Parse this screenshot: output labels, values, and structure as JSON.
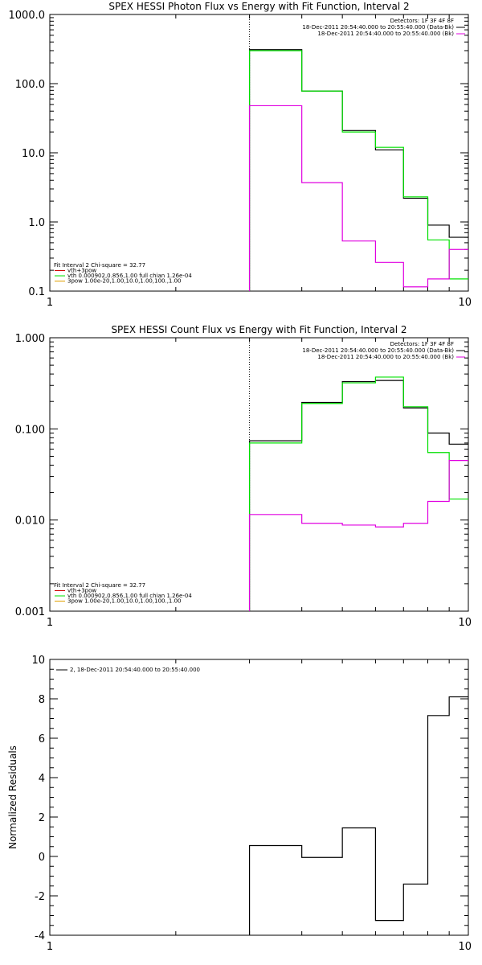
{
  "chart_data": [
    {
      "type": "line",
      "title": "SPEX HESSI Photon Flux vs Energy with Fit Function, Interval 2",
      "ylabel": "",
      "xlabel": "",
      "xscale": "log",
      "yscale": "log",
      "xlim": [
        1,
        10
      ],
      "ylim": [
        0.1,
        1000
      ],
      "x_ticks": [
        "1",
        "10"
      ],
      "y_ticks": [
        "0.1",
        "1.0",
        "10.0",
        "100.0",
        "1000.0"
      ],
      "vline_x": 3,
      "legend_top_right": [
        "Detectors: 1F 3F 4F 8F",
        "18-Dec-2011 20:54:40.000 to 20:55:40.000 (Data-Bk)",
        "18-Dec-2011 20:54:40.000 to 20:55:40.000 (Bk)"
      ],
      "legend_bottom_left": [
        "Fit Interval 2   Chi-square = 32.77",
        "vth+3pow",
        "vth 0.000902,0.856,1.00  full chian 1.26e-04",
        "3pow 1.00e-20,1.00,10.0,1.00,100.,1.00"
      ],
      "legend_colors": [
        "#d00000",
        "#00e000",
        "#e0a000"
      ],
      "edges": [
        3,
        4,
        5,
        6,
        7,
        8,
        9,
        10
      ],
      "series": [
        {
          "name": "",
          "color": "#000000",
          "values": [
            310,
            78,
            21,
            11,
            2.2,
            0.9,
            0.6
          ]
        },
        {
          "name": "",
          "color": "#00e000",
          "values": [
            300,
            78,
            20,
            12,
            2.3,
            0.55,
            0.15
          ]
        },
        {
          "name": "",
          "color": "#e000e0",
          "values": [
            48,
            3.7,
            0.53,
            0.26,
            0.115,
            0.15,
            0.4
          ]
        }
      ]
    },
    {
      "type": "line",
      "title": "SPEX HESSI Count Flux vs Energy with Fit Function, Interval 2",
      "ylabel": "",
      "xlabel": "",
      "xscale": "log",
      "yscale": "log",
      "xlim": [
        1,
        10
      ],
      "ylim": [
        0.001,
        1
      ],
      "x_ticks": [
        "1",
        "10"
      ],
      "y_ticks": [
        "0.001",
        "0.010",
        "0.100",
        "1.000"
      ],
      "vline_x": 3,
      "legend_top_right": [
        "Detectors: 1F 3F 4F 8F",
        "18-Dec-2011 20:54:40.000 to 20:55:40.000 (Data-Bk)",
        "18-Dec-2011 20:54:40.000 to 20:55:40.000 (Bk)"
      ],
      "legend_bottom_left": [
        "Fit Interval 2   Chi-square = 32.77",
        "vth+3pow",
        "vth 0.000902,0.856,1.00  full chian 1.26e-04",
        "3pow 1.00e-20,1.00,10.0,1.00,100.,1.00"
      ],
      "legend_colors": [
        "#d00000",
        "#00e000",
        "#e0a000"
      ],
      "edges": [
        3,
        4,
        5,
        6,
        7,
        8,
        9,
        10
      ],
      "series": [
        {
          "name": "",
          "color": "#000000",
          "values": [
            0.074,
            0.195,
            0.33,
            0.34,
            0.17,
            0.09,
            0.068
          ]
        },
        {
          "name": "",
          "color": "#00e000",
          "values": [
            0.07,
            0.19,
            0.32,
            0.37,
            0.175,
            0.055,
            0.017
          ]
        },
        {
          "name": "",
          "color": "#e000e0",
          "values": [
            0.0115,
            0.0092,
            0.0088,
            0.0084,
            0.0092,
            0.016,
            0.045
          ]
        }
      ]
    },
    {
      "type": "line",
      "title": "",
      "ylabel": "Normalized Residuals",
      "xlabel": "",
      "xscale": "log",
      "yscale": "linear",
      "xlim": [
        1,
        10
      ],
      "ylim": [
        -4,
        10
      ],
      "x_ticks": [
        "1",
        "10"
      ],
      "y_ticks": [
        "-4",
        "-2",
        "0",
        "2",
        "4",
        "6",
        "8",
        "10"
      ],
      "legend": "2, 18-Dec-2011 20:54:40.000 to 20:55:40.000",
      "edges": [
        3,
        4,
        5,
        6,
        7,
        8,
        9,
        10
      ],
      "series": [
        {
          "name": "",
          "color": "#000000",
          "values": [
            0.55,
            -0.05,
            1.45,
            -3.25,
            -1.4,
            7.15,
            8.1
          ]
        }
      ]
    }
  ]
}
